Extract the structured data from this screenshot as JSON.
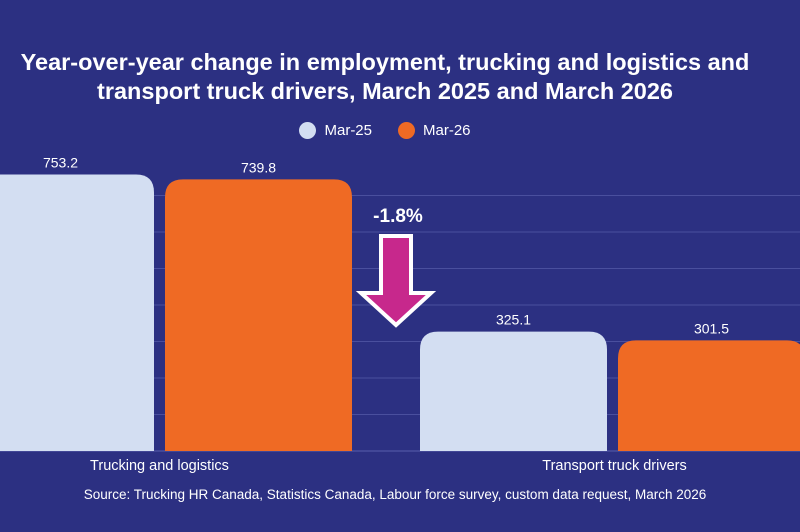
{
  "chart_data": {
    "type": "bar",
    "title_lines": [
      "Year-over-year change in employment, trucking and logistics and",
      "transport truck drivers, March 2025 and March 2026"
    ],
    "categories": [
      "Trucking and logistics",
      "Transport truck drivers"
    ],
    "series": [
      {
        "name": "Mar-25",
        "values": [
          753.2,
          325.1
        ],
        "labels": [
          "753.2",
          "325.1"
        ],
        "color": "#d3def2"
      },
      {
        "name": "Mar-26",
        "values": [
          739.8,
          301.5
        ],
        "labels": [
          "739.8",
          "301.5"
        ],
        "color": "#ef6a24"
      }
    ],
    "annotation": {
      "text": "-1.8%",
      "arrow_color": "#c7288c"
    },
    "ylim": [
      0,
      790
    ],
    "grid": true,
    "legend_position": "top-center",
    "source": "Source: Trucking HR Canada, Statistics Canada, Labour force survey, custom data request, March 2026"
  },
  "colors": {
    "background": "#2c3082",
    "gridline": "#4a4f9e"
  }
}
